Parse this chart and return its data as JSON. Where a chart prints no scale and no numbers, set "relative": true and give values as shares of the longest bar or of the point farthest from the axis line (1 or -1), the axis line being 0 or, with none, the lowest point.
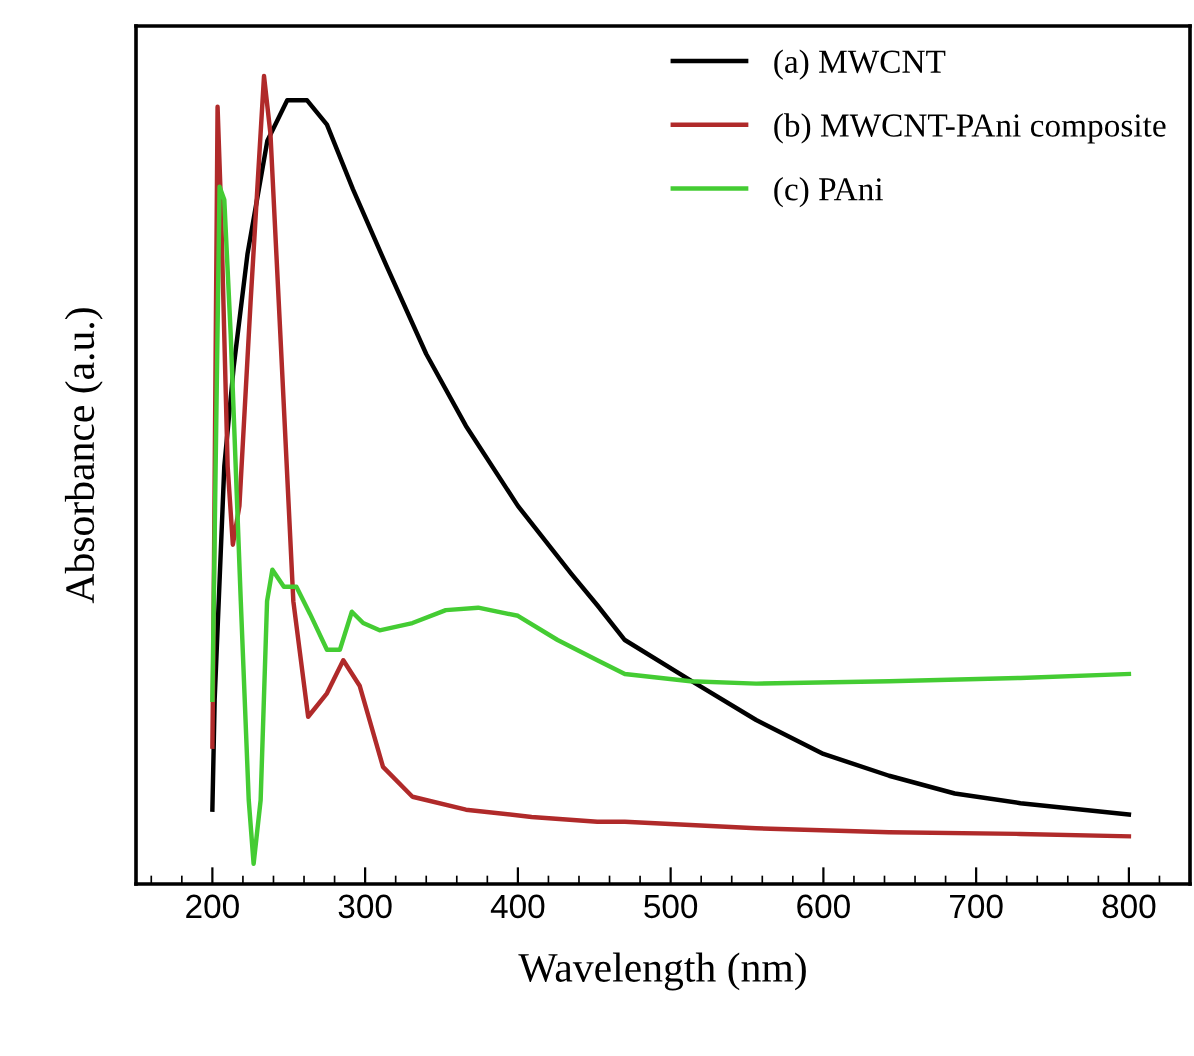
{
  "chart_data": {
    "type": "line",
    "xlabel": "Wavelength (nm)",
    "ylabel": "Absorbance (a.u.)",
    "relative": true,
    "xlim": [
      150,
      840
    ],
    "xticks": [
      200,
      300,
      400,
      500,
      600,
      700,
      800
    ],
    "grid": false,
    "legend": "top right",
    "marker": "none",
    "line_style": "solid",
    "series": [
      {
        "name": "(a) MWCNT",
        "color": "#000000",
        "x": [
          200,
          201.5,
          207.8,
          214,
          223,
          236,
          249,
          262,
          275,
          292,
          314,
          340,
          366,
          400,
          435,
          452,
          470,
          513,
          556,
          600,
          643,
          686,
          729,
          800
        ],
        "values": [
          0.092,
          0.228,
          0.517,
          0.641,
          0.78,
          0.92,
          0.97,
          0.97,
          0.94,
          0.86,
          0.765,
          0.656,
          0.567,
          0.468,
          0.384,
          0.345,
          0.302,
          0.252,
          0.203,
          0.161,
          0.134,
          0.112,
          0.1,
          0.086
        ]
      },
      {
        "name": "(b) MWCNT-PAni composite",
        "color": "#b02a2a",
        "x": [
          200,
          200.5,
          203.4,
          205.5,
          210,
          213.4,
          217.7,
          225,
          233.8,
          238,
          244.5,
          253,
          262.7,
          275,
          285.7,
          296.5,
          311.7,
          331,
          366,
          409,
          452,
          470,
          556,
          643,
          729,
          800
        ],
        "values": [
          0.17,
          0.26,
          0.962,
          0.847,
          0.517,
          0.42,
          0.468,
          0.72,
          1.0,
          0.929,
          0.68,
          0.35,
          0.207,
          0.236,
          0.277,
          0.245,
          0.145,
          0.108,
          0.092,
          0.083,
          0.077,
          0.077,
          0.069,
          0.064,
          0.062,
          0.059
        ]
      },
      {
        "name": "(c) PAni",
        "color": "#44cc33",
        "x": [
          200,
          204.7,
          207.8,
          212,
          218.6,
          223.8,
          227,
          231.6,
          235.8,
          239.3,
          246.8,
          255,
          264,
          275,
          283.5,
          291.3,
          298.7,
          309.5,
          331,
          352.8,
          374,
          400,
          426,
          452,
          470,
          513,
          556,
          643,
          729,
          800
        ],
        "values": [
          0.228,
          0.863,
          0.847,
          0.68,
          0.35,
          0.104,
          0.025,
          0.104,
          0.35,
          0.389,
          0.368,
          0.368,
          0.334,
          0.29,
          0.29,
          0.337,
          0.323,
          0.314,
          0.323,
          0.339,
          0.342,
          0.332,
          0.302,
          0.277,
          0.26,
          0.251,
          0.248,
          0.251,
          0.255,
          0.26
        ]
      }
    ]
  }
}
